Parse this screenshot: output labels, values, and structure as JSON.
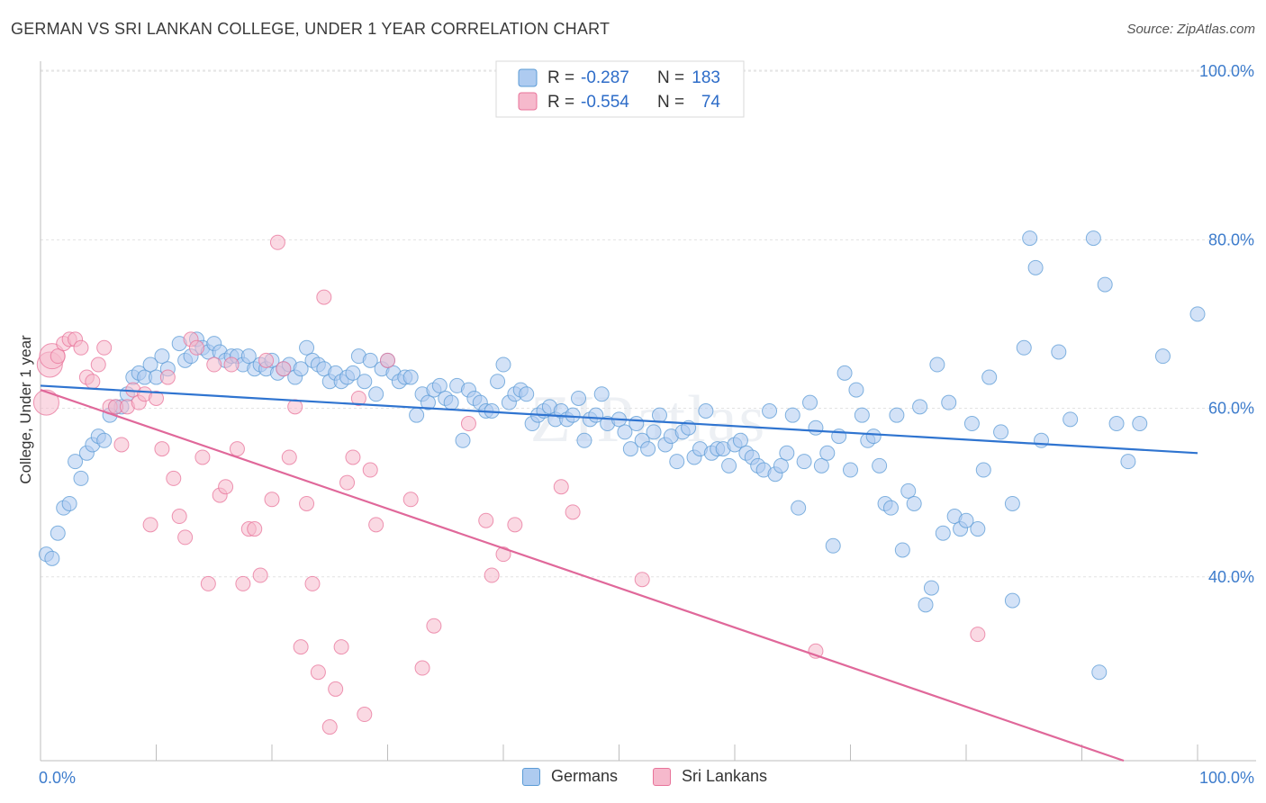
{
  "title": "GERMAN VS SRI LANKAN COLLEGE, UNDER 1 YEAR CORRELATION CHART",
  "source": "Source: ZipAtlas.com",
  "watermark": "ZIPatlas",
  "chart_data": {
    "type": "scatter",
    "xlabel": "",
    "ylabel": "College, Under 1 year",
    "x_tick_labels": [
      "0.0%",
      "100.0%"
    ],
    "y_tick_labels": [
      "100.0%",
      "80.0%",
      "60.0%",
      "40.0%"
    ],
    "xlim": [
      0,
      100
    ],
    "ylim": [
      20,
      103
    ],
    "grid": true,
    "legend_position": "top-center",
    "series": [
      {
        "name": "Germans",
        "color": "#5b9bd5",
        "fill": "#aecbf0",
        "r": "-0.287",
        "n": "183",
        "r_label": "R =",
        "n_label": "N =",
        "trend": [
          [
            0,
            64.5
          ],
          [
            100,
            56.5
          ]
        ],
        "points": [
          [
            0.5,
            44.5
          ],
          [
            1,
            44
          ],
          [
            1.5,
            47
          ],
          [
            2,
            50
          ],
          [
            2.5,
            50.5
          ],
          [
            3,
            55.5
          ],
          [
            3.5,
            53.5
          ],
          [
            4,
            56.5
          ],
          [
            4.5,
            57.5
          ],
          [
            5,
            58.5
          ],
          [
            5.5,
            58
          ],
          [
            6,
            61
          ],
          [
            6.5,
            62
          ],
          [
            7,
            62
          ],
          [
            7.5,
            63.5
          ],
          [
            8,
            65.5
          ],
          [
            8.5,
            66
          ],
          [
            9,
            65.5
          ],
          [
            9.5,
            67
          ],
          [
            10,
            65.5
          ],
          [
            10.5,
            68
          ],
          [
            11,
            66.5
          ],
          [
            12,
            69.5
          ],
          [
            12.5,
            67.5
          ],
          [
            13,
            68
          ],
          [
            13.5,
            70
          ],
          [
            14,
            69
          ],
          [
            14.5,
            68.5
          ],
          [
            15,
            69.5
          ],
          [
            15.5,
            68.5
          ],
          [
            16,
            67.5
          ],
          [
            16.5,
            68
          ],
          [
            17,
            68
          ],
          [
            17.5,
            67
          ],
          [
            18,
            68
          ],
          [
            18.5,
            66.5
          ],
          [
            19,
            67
          ],
          [
            19.5,
            66.5
          ],
          [
            20,
            67.5
          ],
          [
            20.5,
            66
          ],
          [
            21,
            66.5
          ],
          [
            21.5,
            67
          ],
          [
            22,
            65.5
          ],
          [
            22.5,
            66.5
          ],
          [
            23,
            69
          ],
          [
            23.5,
            67.5
          ],
          [
            24,
            67
          ],
          [
            24.5,
            66.5
          ],
          [
            25,
            65
          ],
          [
            25.5,
            66
          ],
          [
            26,
            65
          ],
          [
            26.5,
            65.5
          ],
          [
            27,
            66
          ],
          [
            27.5,
            68
          ],
          [
            28,
            65
          ],
          [
            28.5,
            67.5
          ],
          [
            29,
            63.5
          ],
          [
            29.5,
            66.5
          ],
          [
            30,
            67.5
          ],
          [
            30.5,
            66
          ],
          [
            31,
            65
          ],
          [
            31.5,
            65.5
          ],
          [
            32,
            65.5
          ],
          [
            32.5,
            61
          ],
          [
            33,
            63.5
          ],
          [
            33.5,
            62.5
          ],
          [
            34,
            64
          ],
          [
            34.5,
            64.5
          ],
          [
            35,
            63
          ],
          [
            35.5,
            62.5
          ],
          [
            36,
            64.5
          ],
          [
            36.5,
            58
          ],
          [
            37,
            64
          ],
          [
            37.5,
            63
          ],
          [
            38,
            62.5
          ],
          [
            38.5,
            61.5
          ],
          [
            39,
            61.5
          ],
          [
            39.5,
            65
          ],
          [
            40,
            67
          ],
          [
            40.5,
            62.5
          ],
          [
            41,
            63.5
          ],
          [
            41.5,
            64
          ],
          [
            42,
            63.5
          ],
          [
            42.5,
            60
          ],
          [
            43,
            61
          ],
          [
            43.5,
            61.5
          ],
          [
            44,
            62
          ],
          [
            44.5,
            60.5
          ],
          [
            45,
            61.5
          ],
          [
            45.5,
            60.5
          ],
          [
            46,
            61
          ],
          [
            46.5,
            63
          ],
          [
            47,
            58
          ],
          [
            47.5,
            60.5
          ],
          [
            48,
            61
          ],
          [
            48.5,
            63.5
          ],
          [
            49,
            60
          ],
          [
            50,
            60.5
          ],
          [
            50.5,
            59
          ],
          [
            51,
            57
          ],
          [
            51.5,
            60
          ],
          [
            52,
            58
          ],
          [
            52.5,
            57
          ],
          [
            53,
            59
          ],
          [
            53.5,
            61
          ],
          [
            54,
            57.5
          ],
          [
            54.5,
            58.5
          ],
          [
            55,
            55.5
          ],
          [
            55.5,
            59
          ],
          [
            56,
            59.5
          ],
          [
            56.5,
            56
          ],
          [
            57,
            57
          ],
          [
            57.5,
            61.5
          ],
          [
            58,
            56.5
          ],
          [
            58.5,
            57
          ],
          [
            59,
            57
          ],
          [
            59.5,
            55
          ],
          [
            60,
            57.5
          ],
          [
            60.5,
            58
          ],
          [
            61,
            56.5
          ],
          [
            61.5,
            56
          ],
          [
            62,
            55
          ],
          [
            62.5,
            54.5
          ],
          [
            63,
            61.5
          ],
          [
            63.5,
            54
          ],
          [
            64,
            55
          ],
          [
            64.5,
            56.5
          ],
          [
            65,
            61
          ],
          [
            65.5,
            50
          ],
          [
            66,
            55.5
          ],
          [
            66.5,
            62.5
          ],
          [
            67,
            59.5
          ],
          [
            67.5,
            55
          ],
          [
            68,
            56.5
          ],
          [
            68.5,
            45.5
          ],
          [
            69,
            58.5
          ],
          [
            69.5,
            66
          ],
          [
            70,
            54.5
          ],
          [
            70.5,
            64
          ],
          [
            71,
            61
          ],
          [
            71.5,
            58
          ],
          [
            72,
            58.5
          ],
          [
            72.5,
            55
          ],
          [
            73,
            50.5
          ],
          [
            73.5,
            50
          ],
          [
            74,
            61
          ],
          [
            74.5,
            45
          ],
          [
            75,
            52
          ],
          [
            75.5,
            50.5
          ],
          [
            76,
            62
          ],
          [
            76.5,
            38.5
          ],
          [
            77,
            40.5
          ],
          [
            77.5,
            67
          ],
          [
            78,
            47
          ],
          [
            78.5,
            62.5
          ],
          [
            79,
            49
          ],
          [
            79.5,
            47.5
          ],
          [
            80,
            48.5
          ],
          [
            80.5,
            60
          ],
          [
            81,
            47.5
          ],
          [
            81.5,
            54.5
          ],
          [
            82,
            65.5
          ],
          [
            83,
            59
          ],
          [
            84,
            50.5
          ],
          [
            84,
            39
          ],
          [
            85,
            69
          ],
          [
            85.5,
            82
          ],
          [
            86,
            78.5
          ],
          [
            86.5,
            58
          ],
          [
            88,
            68.5
          ],
          [
            89,
            60.5
          ],
          [
            91,
            82
          ],
          [
            91.5,
            30.5
          ],
          [
            92,
            76.5
          ],
          [
            93,
            60
          ],
          [
            94,
            55.5
          ],
          [
            95,
            60
          ],
          [
            97,
            68
          ],
          [
            100,
            73
          ]
        ]
      },
      {
        "name": "Sri Lankans",
        "color": "#e8739a",
        "fill": "#f6b9cc",
        "r": "-0.554",
        "n": "74",
        "r_label": "R =",
        "n_label": "N =",
        "trend": [
          [
            0,
            64
          ],
          [
            100,
            17
          ]
        ],
        "points": [
          [
            0.5,
            62.5
          ],
          [
            0.8,
            67
          ],
          [
            1,
            68
          ],
          [
            1.5,
            68
          ],
          [
            2,
            69.5
          ],
          [
            2.5,
            70
          ],
          [
            3,
            70
          ],
          [
            3.5,
            69
          ],
          [
            4,
            65.5
          ],
          [
            4.5,
            65
          ],
          [
            5,
            67
          ],
          [
            5.5,
            69
          ],
          [
            6,
            62
          ],
          [
            6.5,
            62
          ],
          [
            7,
            57.5
          ],
          [
            7.5,
            62
          ],
          [
            8,
            64
          ],
          [
            8.5,
            62.5
          ],
          [
            9,
            63.5
          ],
          [
            9.5,
            48
          ],
          [
            10,
            63
          ],
          [
            10.5,
            57
          ],
          [
            11,
            65.5
          ],
          [
            11.5,
            53.5
          ],
          [
            12,
            49
          ],
          [
            12.5,
            46.5
          ],
          [
            13,
            70
          ],
          [
            13.5,
            69
          ],
          [
            14,
            56
          ],
          [
            14.5,
            41
          ],
          [
            15,
            67
          ],
          [
            15.5,
            51.5
          ],
          [
            16,
            52.5
          ],
          [
            16.5,
            67
          ],
          [
            17,
            57
          ],
          [
            17.5,
            41
          ],
          [
            18,
            47.5
          ],
          [
            18.5,
            47.5
          ],
          [
            19,
            42
          ],
          [
            19.5,
            67.5
          ],
          [
            20,
            51
          ],
          [
            20.5,
            81.5
          ],
          [
            21,
            66.5
          ],
          [
            21.5,
            56
          ],
          [
            22,
            62
          ],
          [
            22.5,
            33.5
          ],
          [
            23,
            50.5
          ],
          [
            23.5,
            41
          ],
          [
            24,
            30.5
          ],
          [
            24.5,
            75
          ],
          [
            25,
            24
          ],
          [
            25.5,
            28.5
          ],
          [
            26,
            33.5
          ],
          [
            26.5,
            53
          ],
          [
            27,
            56
          ],
          [
            27.5,
            63
          ],
          [
            28,
            25.5
          ],
          [
            28.5,
            54.5
          ],
          [
            29,
            48
          ],
          [
            30,
            67.5
          ],
          [
            32,
            51
          ],
          [
            33,
            31
          ],
          [
            34,
            36
          ],
          [
            37,
            60
          ],
          [
            38.5,
            48.5
          ],
          [
            39,
            42
          ],
          [
            40,
            44.5
          ],
          [
            41,
            48
          ],
          [
            45,
            52.5
          ],
          [
            46,
            49.5
          ],
          [
            52,
            41.5
          ],
          [
            67,
            33
          ],
          [
            81,
            35
          ]
        ]
      }
    ]
  }
}
